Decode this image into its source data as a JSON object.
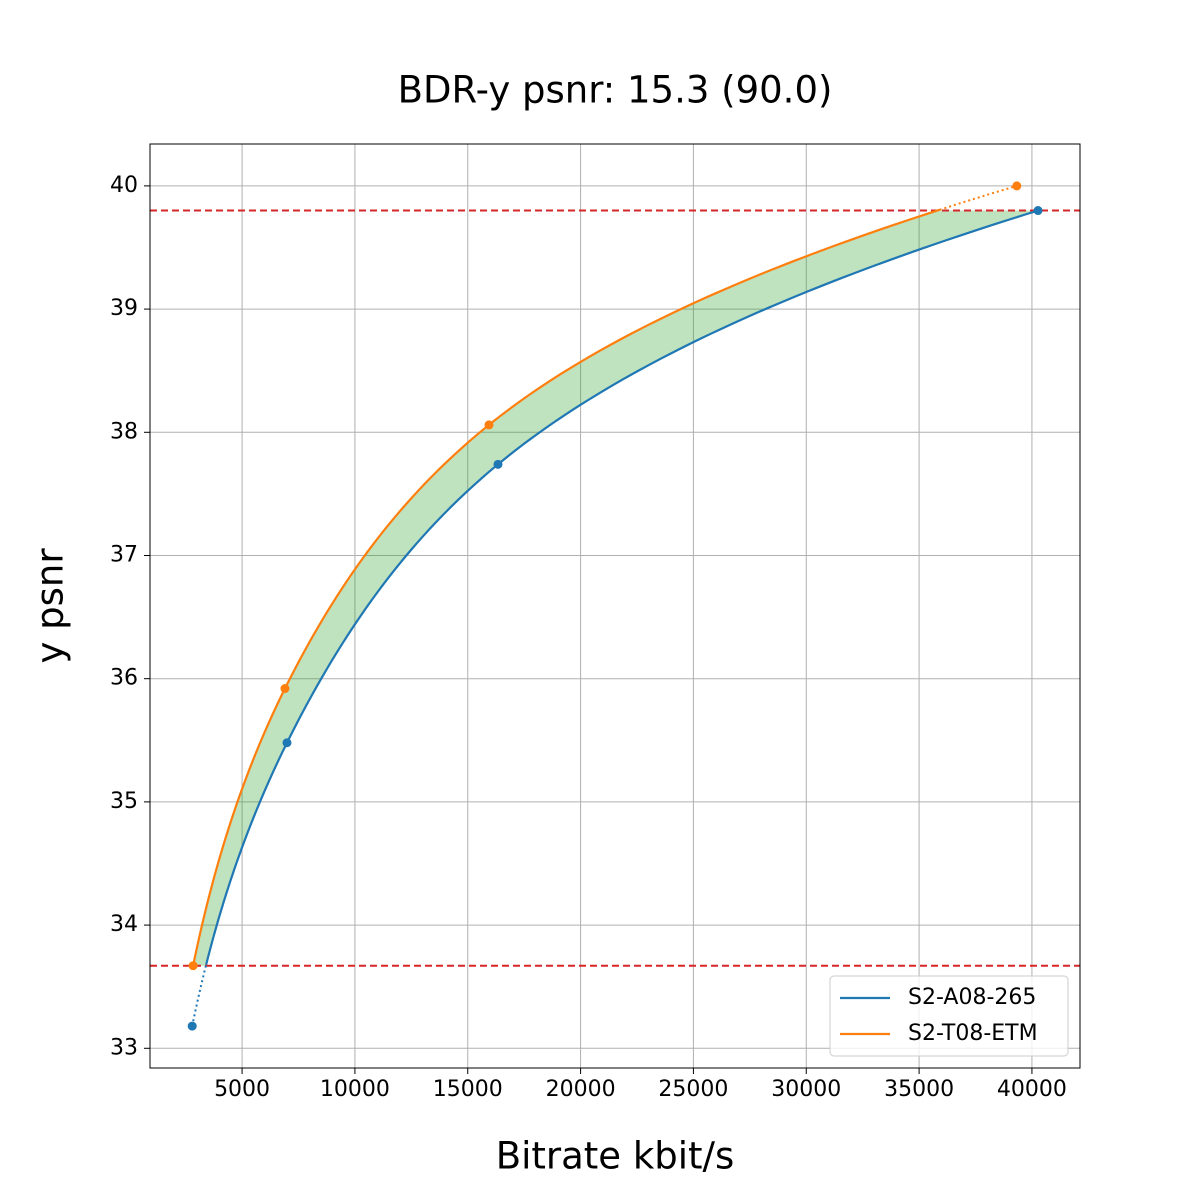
{
  "chart_data": {
    "type": "line",
    "title": "BDR-y psnr: 15.3 (90.0)",
    "x_label": "Bitrate kbit/s",
    "y_label": "y psnr",
    "series": [
      {
        "name": "S2-A08-265",
        "color": "#1f77b4",
        "x": [
          2790,
          6990,
          16340,
          40270
        ],
        "values": [
          33.18,
          35.48,
          37.74,
          39.8
        ]
      },
      {
        "name": "S2-T08-ETM",
        "color": "#ff7f0e",
        "x": [
          2830,
          6900,
          15940,
          39330
        ],
        "values": [
          33.67,
          35.92,
          38.06,
          40.0
        ]
      }
    ],
    "fill_color": "#2ca02c",
    "ref_line_color": "#d62728",
    "xlim": [
      920,
      42130
    ],
    "ylim": [
      32.84,
      40.34
    ],
    "xticks": [
      5000,
      10000,
      15000,
      20000,
      25000,
      30000,
      35000,
      40000
    ],
    "yticks": [
      33,
      34,
      35,
      36,
      37,
      38,
      39,
      40
    ],
    "grid": true,
    "legend": "lower right"
  }
}
